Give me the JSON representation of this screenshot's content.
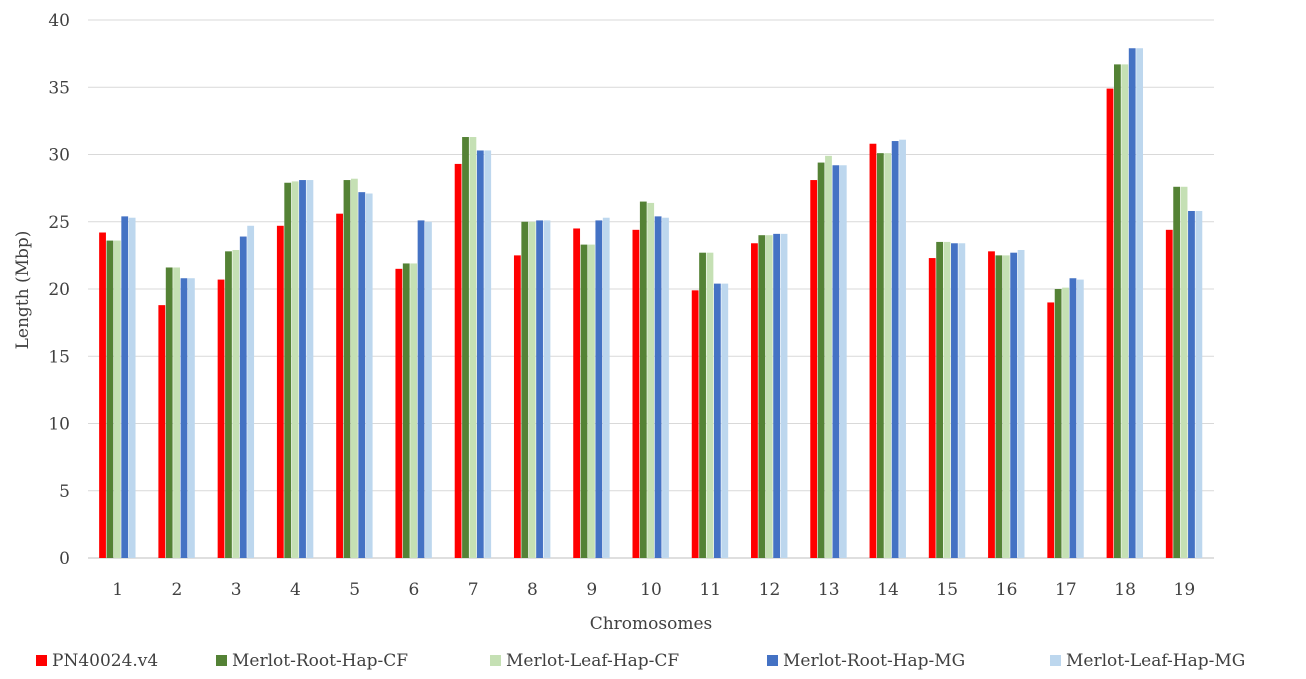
{
  "chart_data": {
    "type": "bar",
    "xlabel": "Chromosomes",
    "ylabel": "Length (Mbp)",
    "ylim": [
      0,
      40
    ],
    "yticks": [
      0,
      5,
      10,
      15,
      20,
      25,
      30,
      35,
      40
    ],
    "grid": "horizontal",
    "legend_position": "bottom",
    "categories": [
      "1",
      "2",
      "3",
      "4",
      "5",
      "6",
      "7",
      "8",
      "9",
      "10",
      "11",
      "12",
      "13",
      "14",
      "15",
      "16",
      "17",
      "18",
      "19"
    ],
    "series": [
      {
        "name": "PN40024.v4",
        "color": "#ff0000",
        "values": [
          24.2,
          18.8,
          20.7,
          24.7,
          25.6,
          21.5,
          29.3,
          22.5,
          24.5,
          24.4,
          19.9,
          23.4,
          28.1,
          30.8,
          22.3,
          22.8,
          19.0,
          34.9,
          24.4
        ]
      },
      {
        "name": "Merlot-Root-Hap-CF",
        "color": "#548235",
        "values": [
          23.6,
          21.6,
          22.8,
          27.9,
          28.1,
          21.9,
          31.3,
          25.0,
          23.3,
          26.5,
          22.7,
          24.0,
          29.4,
          30.1,
          23.5,
          22.5,
          20.0,
          36.7,
          27.6
        ]
      },
      {
        "name": "Merlot-Leaf-Hap-CF",
        "color": "#c5e0b4",
        "values": [
          23.6,
          21.6,
          22.9,
          28.0,
          28.2,
          21.9,
          31.3,
          25.0,
          23.3,
          26.4,
          22.7,
          24.0,
          29.9,
          30.1,
          23.5,
          22.5,
          20.1,
          36.7,
          27.6
        ]
      },
      {
        "name": "Merlot-Root-Hap-MG",
        "color": "#4472c4",
        "values": [
          25.4,
          20.8,
          23.9,
          28.1,
          27.2,
          25.1,
          30.3,
          25.1,
          25.1,
          25.4,
          20.4,
          24.1,
          29.2,
          31.0,
          23.4,
          22.7,
          20.8,
          37.9,
          25.8
        ]
      },
      {
        "name": "Merlot-Leaf-Hap-MG",
        "color": "#bdd7ee",
        "values": [
          25.3,
          20.8,
          24.7,
          28.1,
          27.1,
          25.0,
          30.3,
          25.1,
          25.3,
          25.3,
          20.4,
          24.1,
          29.2,
          31.1,
          23.4,
          22.9,
          20.7,
          37.9,
          25.8
        ]
      }
    ]
  }
}
